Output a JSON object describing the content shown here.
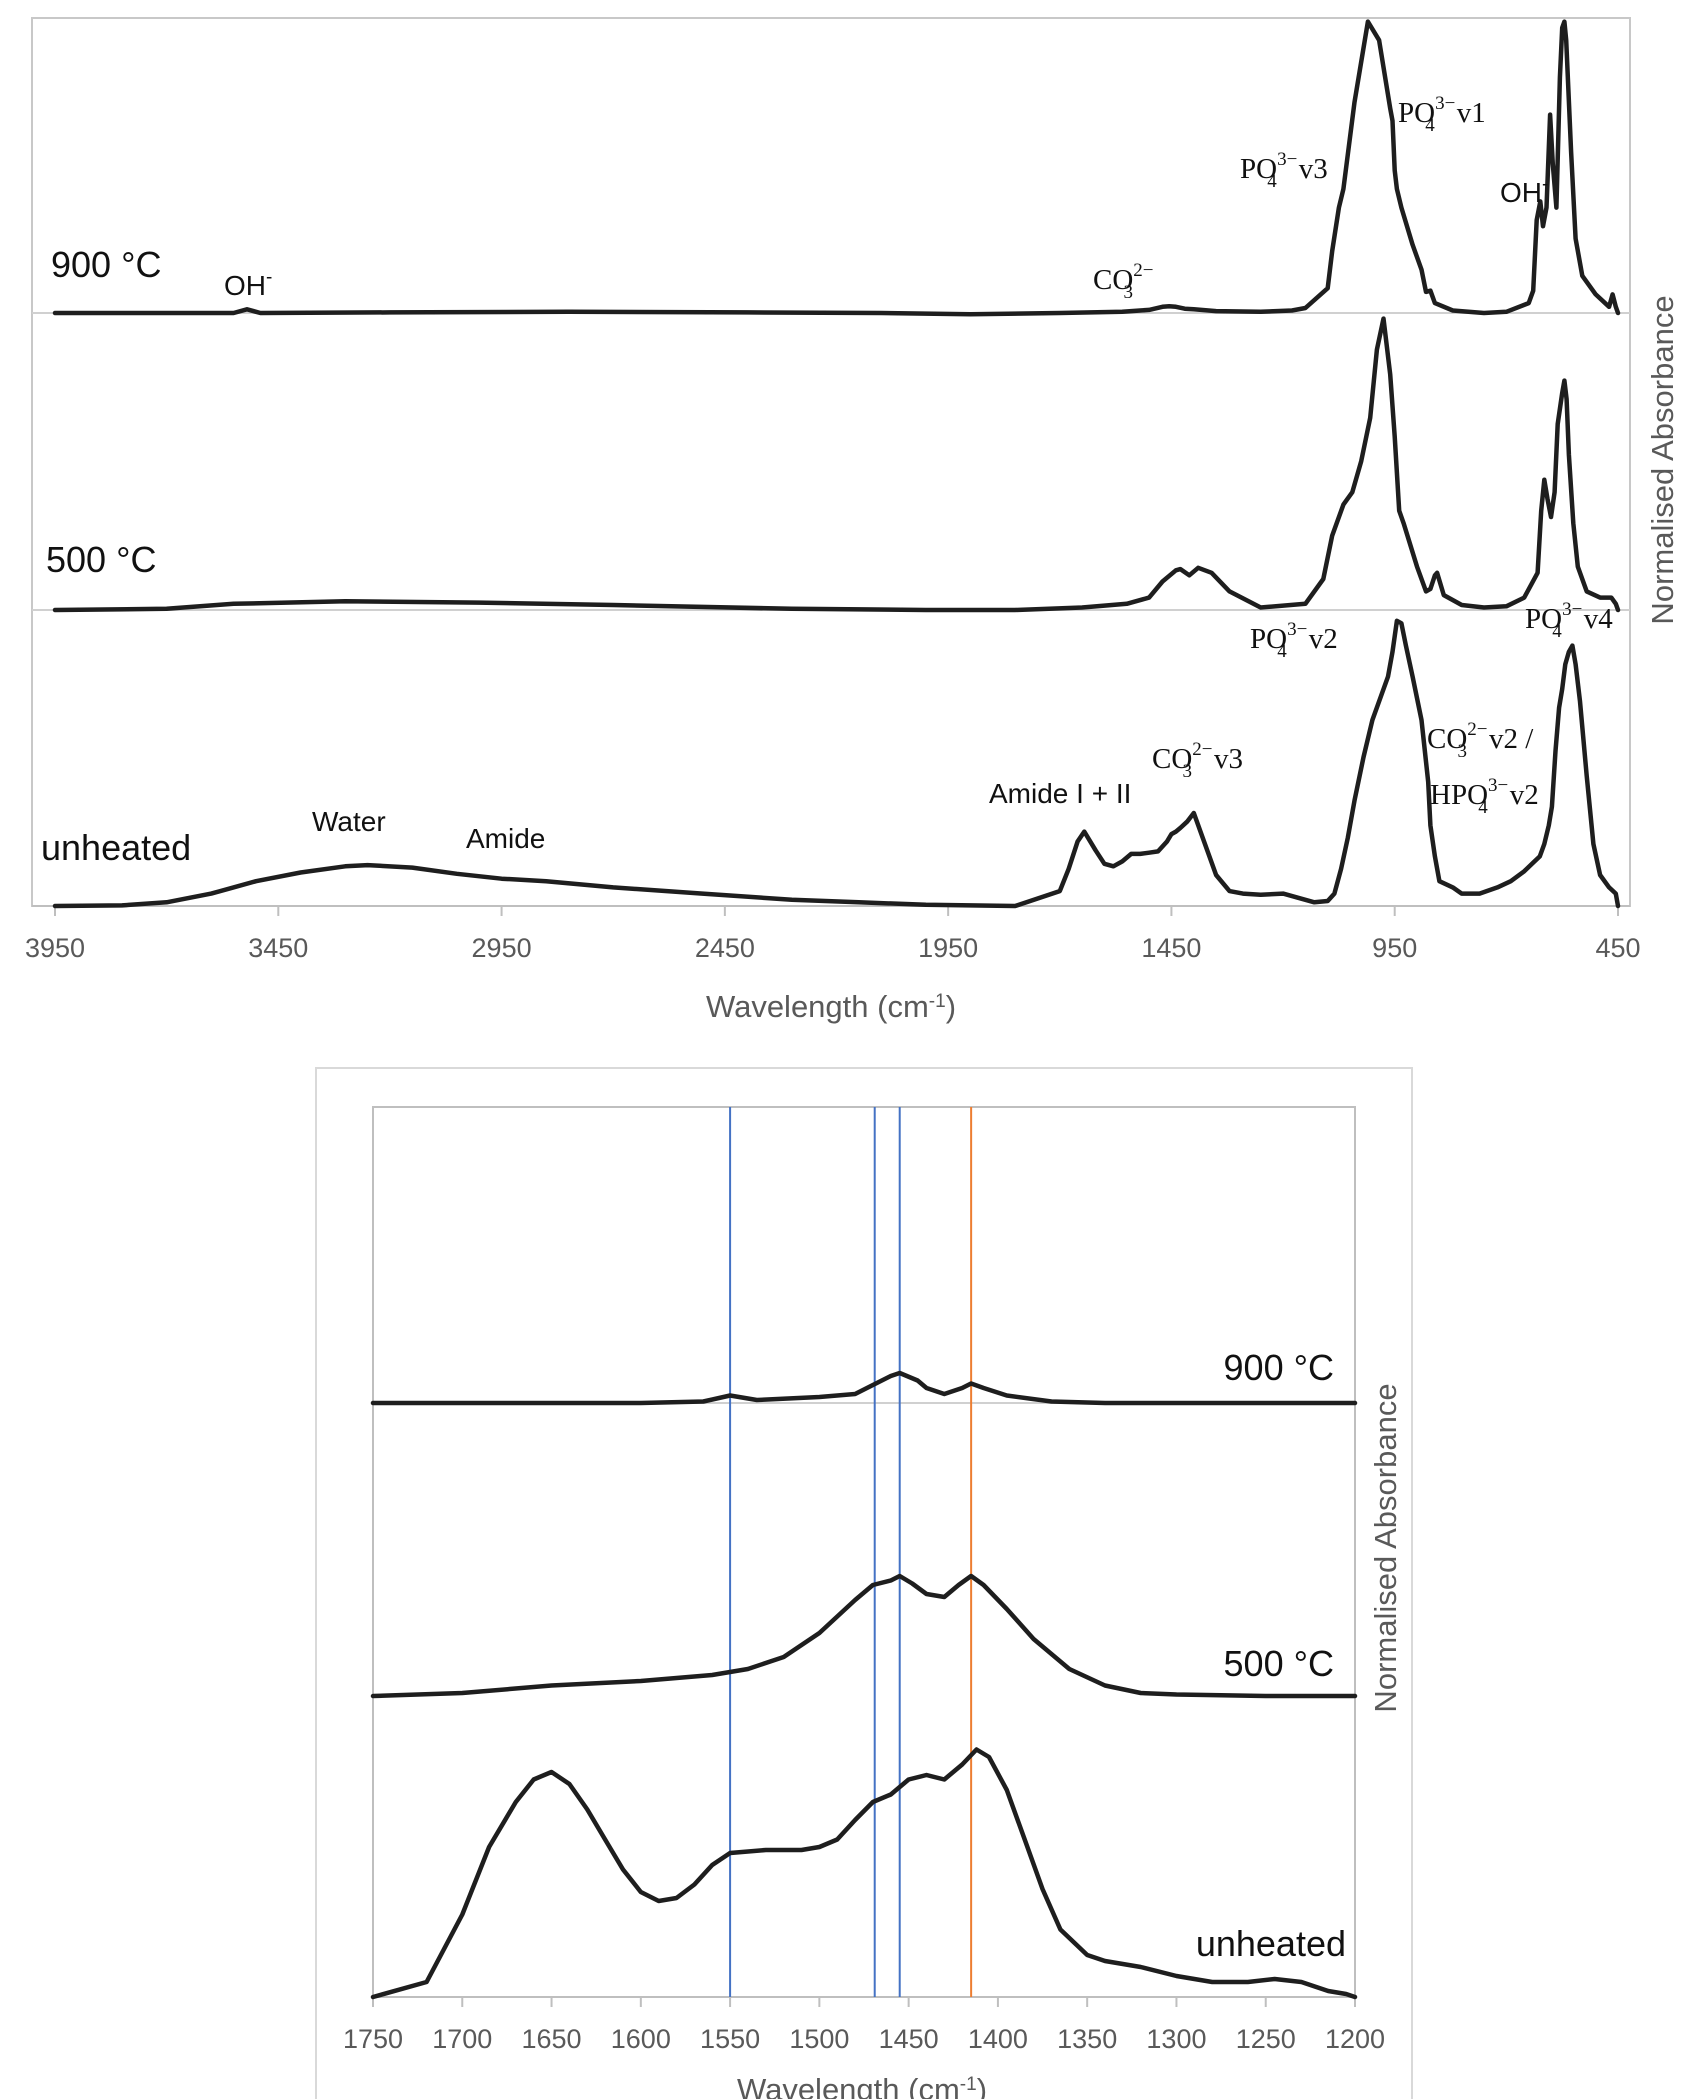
{
  "chart_data": [
    {
      "type": "line",
      "xlabel": "Wavelength (cm-1)",
      "ylabel": "Normalised Absorbance",
      "xlim": [
        3950,
        450
      ],
      "x_reversed": true,
      "x_ticks": [
        "3950",
        "3450",
        "2950",
        "2450",
        "1950",
        "1450",
        "950",
        "450"
      ],
      "grid": false,
      "series": [
        {
          "name": "900 °C",
          "x": [
            3950,
            3550,
            3520,
            3490,
            3200,
            2800,
            2400,
            2100,
            1900,
            1700,
            1560,
            1520,
            1500,
            1470,
            1455,
            1440,
            1420,
            1400,
            1350,
            1250,
            1180,
            1150,
            1100,
            1090,
            1075,
            1065,
            1040,
            1010,
            985,
            960,
            955,
            950,
            945,
            935,
            910,
            890,
            880,
            870,
            860,
            820,
            750,
            700,
            650,
            640,
            632,
            624,
            618,
            610,
            602,
            596,
            588,
            580,
            575,
            570,
            566,
            555,
            545,
            530,
            500,
            470,
            462,
            455,
            450
          ],
          "values": [
            0.0,
            0.0,
            0.03,
            0.0,
            0.005,
            0.01,
            0.005,
            0.0,
            -0.01,
            0.0,
            0.01,
            0.02,
            0.025,
            0.05,
            0.055,
            0.05,
            0.035,
            0.03,
            0.015,
            0.01,
            0.02,
            0.04,
            0.2,
            0.5,
            0.85,
            1.0,
            1.7,
            2.35,
            2.2,
            1.65,
            1.55,
            1.15,
            1.0,
            0.85,
            0.55,
            0.35,
            0.17,
            0.18,
            0.08,
            0.02,
            0.0,
            0.01,
            0.08,
            0.18,
            0.75,
            0.9,
            0.7,
            0.85,
            1.6,
            1.2,
            0.85,
            1.9,
            2.3,
            2.35,
            2.2,
            1.3,
            0.6,
            0.3,
            0.15,
            0.05,
            0.15,
            0.05,
            0.0
          ]
        },
        {
          "name": "500 °C",
          "x": [
            3950,
            3700,
            3550,
            3300,
            3000,
            2700,
            2300,
            2000,
            1800,
            1650,
            1550,
            1500,
            1470,
            1440,
            1430,
            1410,
            1390,
            1360,
            1320,
            1250,
            1150,
            1110,
            1090,
            1065,
            1045,
            1025,
            1005,
            990,
            975,
            960,
            950,
            940,
            930,
            900,
            880,
            870,
            860,
            855,
            840,
            800,
            750,
            700,
            660,
            630,
            622,
            615,
            608,
            600,
            592,
            585,
            575,
            570,
            565,
            560,
            550,
            540,
            520,
            490,
            465,
            455,
            450
          ],
          "values": [
            0.0,
            0.01,
            0.05,
            0.07,
            0.06,
            0.04,
            0.01,
            0.0,
            0.0,
            0.02,
            0.05,
            0.1,
            0.23,
            0.32,
            0.33,
            0.28,
            0.34,
            0.3,
            0.15,
            0.02,
            0.05,
            0.25,
            0.6,
            0.85,
            0.95,
            1.2,
            1.55,
            2.1,
            2.35,
            1.9,
            1.4,
            0.8,
            0.7,
            0.35,
            0.15,
            0.17,
            0.28,
            0.3,
            0.12,
            0.04,
            0.02,
            0.03,
            0.1,
            0.3,
            0.8,
            1.05,
            0.9,
            0.75,
            0.95,
            1.5,
            1.75,
            1.85,
            1.7,
            1.25,
            0.7,
            0.35,
            0.15,
            0.1,
            0.1,
            0.05,
            0.0
          ]
        },
        {
          "name": "unheated",
          "x": [
            3950,
            3800,
            3700,
            3600,
            3500,
            3400,
            3300,
            3250,
            3150,
            3050,
            2950,
            2850,
            2700,
            2500,
            2300,
            2150,
            2000,
            1800,
            1700,
            1680,
            1660,
            1645,
            1620,
            1600,
            1580,
            1560,
            1540,
            1520,
            1500,
            1480,
            1460,
            1450,
            1440,
            1430,
            1415,
            1400,
            1380,
            1350,
            1320,
            1290,
            1250,
            1200,
            1160,
            1130,
            1100,
            1085,
            1070,
            1055,
            1040,
            1020,
            1000,
            980,
            965,
            955,
            945,
            935,
            925,
            910,
            890,
            875,
            870,
            860,
            850,
            820,
            800,
            760,
            720,
            690,
            660,
            640,
            625,
            615,
            605,
            598,
            590,
            582,
            575,
            568,
            560,
            552,
            545,
            535,
            520,
            505,
            490,
            470,
            455,
            450
          ],
          "values": [
            0.0,
            0.005,
            0.03,
            0.1,
            0.2,
            0.27,
            0.32,
            0.33,
            0.31,
            0.26,
            0.22,
            0.2,
            0.15,
            0.1,
            0.05,
            0.03,
            0.01,
            0.0,
            0.12,
            0.3,
            0.52,
            0.6,
            0.45,
            0.34,
            0.32,
            0.36,
            0.42,
            0.42,
            0.43,
            0.44,
            0.52,
            0.58,
            0.6,
            0.63,
            0.68,
            0.75,
            0.55,
            0.25,
            0.12,
            0.1,
            0.09,
            0.1,
            0.06,
            0.03,
            0.04,
            0.1,
            0.3,
            0.55,
            0.85,
            1.2,
            1.5,
            1.7,
            1.85,
            2.05,
            2.3,
            2.28,
            2.1,
            1.85,
            1.5,
            1.0,
            0.65,
            0.4,
            0.2,
            0.15,
            0.1,
            0.1,
            0.15,
            0.2,
            0.28,
            0.35,
            0.4,
            0.5,
            0.65,
            0.8,
            1.25,
            1.6,
            1.75,
            1.95,
            2.05,
            2.1,
            1.95,
            1.65,
            1.05,
            0.5,
            0.25,
            0.15,
            0.1,
            0.0
          ]
        }
      ],
      "annotations": [
        {
          "label": "OH",
          "sup": "-"
        },
        {
          "label": "CO",
          "sub": "3",
          "sup": "2−"
        },
        {
          "label": "PO",
          "sub": "4",
          "sup": "3−",
          "suffix": "v3"
        },
        {
          "label": "PO",
          "sub": "4",
          "sup": "3−",
          "suffix": "v1"
        },
        {
          "label": "OH",
          "sup": "-"
        },
        {
          "label": "PO",
          "sub": "4",
          "sup": "3−",
          "suffix": "v2"
        },
        {
          "label": "PO",
          "sub": "4",
          "sup": "3−",
          "suffix": "v4"
        },
        {
          "label": "Water"
        },
        {
          "label": "Amide"
        },
        {
          "label": "Amide I + II"
        },
        {
          "label": "CO",
          "sub": "3",
          "sup": "2−",
          "suffix": "v3"
        },
        {
          "label": "CO",
          "sub": "3",
          "sup": "2−",
          "suffix": "v2 /"
        },
        {
          "label": "HPO",
          "sub": "4",
          "sup": "3−",
          "suffix": "v2"
        }
      ]
    },
    {
      "type": "line",
      "xlabel": "Wavelength (cm-1)",
      "ylabel": "Normalised Absorbance",
      "xlim": [
        1750,
        1200
      ],
      "x_reversed": true,
      "x_ticks": [
        "1750",
        "1700",
        "1650",
        "1600",
        "1550",
        "1500",
        "1450",
        "1400",
        "1350",
        "1300",
        "1250",
        "1200"
      ],
      "grid": false,
      "reference_lines": [
        {
          "x": 1550,
          "color": "#4472c4"
        },
        {
          "x": 1469,
          "color": "#4472c4"
        },
        {
          "x": 1455,
          "color": "#4472c4"
        },
        {
          "x": 1415,
          "color": "#ed7d31"
        }
      ],
      "series": [
        {
          "name": "900 °C",
          "x": [
            1750,
            1600,
            1565,
            1550,
            1535,
            1500,
            1480,
            1470,
            1460,
            1455,
            1445,
            1440,
            1430,
            1420,
            1415,
            1408,
            1395,
            1370,
            1340,
            1300,
            1200
          ],
          "values": [
            0.0,
            0.0,
            0.01,
            0.05,
            0.02,
            0.04,
            0.06,
            0.12,
            0.18,
            0.2,
            0.15,
            0.1,
            0.06,
            0.1,
            0.13,
            0.1,
            0.05,
            0.01,
            0.0,
            0.0,
            0.0
          ]
        },
        {
          "name": "500 °C",
          "x": [
            1750,
            1700,
            1650,
            1600,
            1560,
            1540,
            1520,
            1500,
            1480,
            1470,
            1460,
            1455,
            1448,
            1440,
            1430,
            1422,
            1415,
            1408,
            1395,
            1380,
            1360,
            1340,
            1320,
            1300,
            1250,
            1200
          ],
          "values": [
            0.0,
            0.02,
            0.07,
            0.1,
            0.14,
            0.18,
            0.26,
            0.42,
            0.64,
            0.74,
            0.77,
            0.8,
            0.75,
            0.68,
            0.66,
            0.74,
            0.8,
            0.74,
            0.58,
            0.38,
            0.18,
            0.07,
            0.02,
            0.01,
            0.0,
            0.0
          ]
        },
        {
          "name": "unheated",
          "x": [
            1750,
            1720,
            1700,
            1685,
            1670,
            1660,
            1650,
            1640,
            1630,
            1620,
            1610,
            1600,
            1590,
            1580,
            1570,
            1560,
            1550,
            1530,
            1510,
            1500,
            1490,
            1480,
            1470,
            1460,
            1450,
            1440,
            1430,
            1420,
            1412,
            1405,
            1395,
            1385,
            1375,
            1365,
            1350,
            1340,
            1320,
            1300,
            1280,
            1260,
            1245,
            1230,
            1215,
            1205,
            1200
          ],
          "values": [
            0.0,
            0.1,
            0.55,
            1.0,
            1.3,
            1.45,
            1.5,
            1.42,
            1.25,
            1.05,
            0.85,
            0.7,
            0.64,
            0.66,
            0.75,
            0.88,
            0.96,
            0.98,
            0.98,
            1.0,
            1.05,
            1.18,
            1.3,
            1.35,
            1.45,
            1.48,
            1.45,
            1.55,
            1.65,
            1.6,
            1.38,
            1.05,
            0.72,
            0.45,
            0.28,
            0.24,
            0.2,
            0.14,
            0.1,
            0.1,
            0.12,
            0.1,
            0.04,
            0.02,
            0.0
          ]
        }
      ]
    }
  ]
}
